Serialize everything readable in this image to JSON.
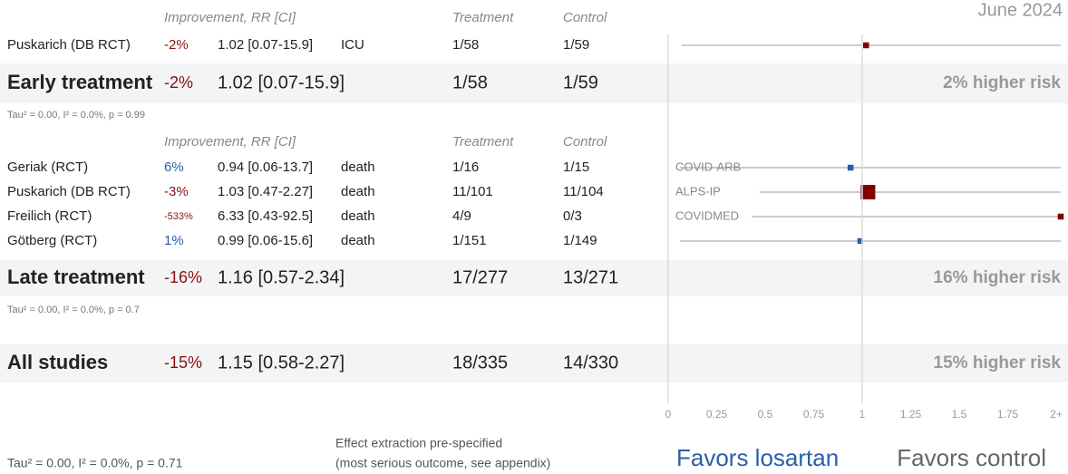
{
  "chart_data": {
    "type": "forest",
    "title": "June 2024",
    "column_headers": [
      "Improvement, RR [CI]",
      "Treatment",
      "Control"
    ],
    "xlim": [
      0,
      2
    ],
    "xticks": [
      0,
      0.25,
      0.5,
      0.75,
      1,
      1.25,
      1.5,
      1.75,
      {
        "value": 2,
        "label": "2+"
      }
    ],
    "groups": [
      {
        "studies": [
          {
            "name": "Puskarich (DB RCT)",
            "improvement": "-2%",
            "rr": "1.02 [0.07-15.9]",
            "outcome": "ICU",
            "treatment": "1/58",
            "control": "1/59",
            "value": 1.02,
            "ci_low": 0.07,
            "ci_high": 15.9
          }
        ],
        "summary": {
          "name": "Early treatment",
          "improvement": "-2%",
          "rr": "1.02 [0.07-15.9]",
          "treatment": "1/58",
          "control": "1/59",
          "value": 1.02,
          "ci_low": 0.07,
          "ci_high": 15.9,
          "label": "2% higher risk"
        },
        "stats": "Tau² = 0.00, I² = 0.0%, p = 0.99"
      },
      {
        "studies": [
          {
            "name": "Geriak (RCT)",
            "improvement": "6%",
            "rr": "0.94 [0.06-13.7]",
            "outcome": "death",
            "treatment": "1/16",
            "control": "1/15",
            "value": 0.94,
            "ci_low": 0.06,
            "ci_high": 13.7,
            "tag": "COVID-ARB"
          },
          {
            "name": "Puskarich (DB RCT)",
            "improvement": "-3%",
            "rr": "1.03 [0.47-2.27]",
            "outcome": "death",
            "treatment": "11/101",
            "control": "11/104",
            "value": 1.03,
            "ci_low": 0.47,
            "ci_high": 2.27,
            "tag": "ALPS-IP"
          },
          {
            "name": "Freilich (RCT)",
            "improvement": "-533%",
            "rr": "6.33 [0.43-92.5]",
            "outcome": "death",
            "treatment": "4/9",
            "control": "0/3",
            "value": 6.33,
            "ci_low": 0.43,
            "ci_high": 92.5,
            "tag": "COVIDMED"
          },
          {
            "name": "Götberg (RCT)",
            "improvement": "1%",
            "rr": "0.99 [0.06-15.6]",
            "outcome": "death",
            "treatment": "1/151",
            "control": "1/149",
            "value": 0.99,
            "ci_low": 0.06,
            "ci_high": 15.6
          }
        ],
        "summary": {
          "name": "Late treatment",
          "improvement": "-16%",
          "rr": "1.16 [0.57-2.34]",
          "treatment": "17/277",
          "control": "13/271",
          "value": 1.16,
          "ci_low": 0.57,
          "ci_high": 2.34,
          "label": "16% higher risk"
        },
        "stats": "Tau² = 0.00, I² = 0.0%, p = 0.7"
      }
    ],
    "overall": {
      "name": "All studies",
      "improvement": "-15%",
      "rr": "1.15 [0.58-2.27]",
      "treatment": "18/335",
      "control": "14/330",
      "value": 1.15,
      "ci_low": 0.58,
      "ci_high": 2.27,
      "label": "15% higher risk",
      "stats": "Tau² = 0.00, I² = 0.0%, p = 0.71"
    },
    "notes": [
      "Effect extraction pre-specified",
      "(most serious outcome, see appendix)"
    ],
    "favors": [
      "Favors losartan",
      "Favors control"
    ]
  }
}
